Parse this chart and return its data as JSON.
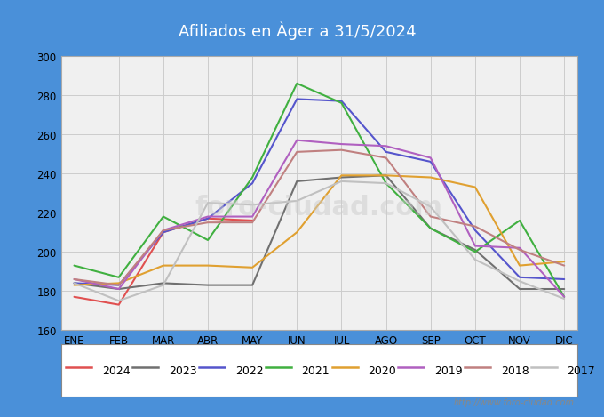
{
  "title": "Afiliados en Àger a 31/5/2024",
  "title_bg_color": "#5b9bd5",
  "title_text_color": "#ffffff",
  "ylim": [
    160,
    300
  ],
  "yticks": [
    160,
    180,
    200,
    220,
    240,
    260,
    280,
    300
  ],
  "months": [
    "ENE",
    "FEB",
    "MAR",
    "ABR",
    "MAY",
    "JUN",
    "JUL",
    "AGO",
    "SEP",
    "OCT",
    "NOV",
    "DIC"
  ],
  "watermark": "http://www.foro-ciudad.com",
  "series": {
    "2024": {
      "color": "#e05050",
      "linewidth": 1.5,
      "data": [
        177,
        173,
        210,
        217,
        216,
        null,
        null,
        null,
        null,
        null,
        null,
        null
      ]
    },
    "2023": {
      "color": "#707070",
      "linewidth": 1.5,
      "data": [
        184,
        181,
        184,
        183,
        183,
        236,
        238,
        239,
        212,
        201,
        181,
        181
      ]
    },
    "2022": {
      "color": "#5555cc",
      "linewidth": 1.5,
      "data": [
        184,
        183,
        210,
        217,
        235,
        278,
        277,
        251,
        246,
        211,
        187,
        186
      ]
    },
    "2021": {
      "color": "#40b040",
      "linewidth": 1.5,
      "data": [
        193,
        187,
        218,
        206,
        238,
        286,
        276,
        235,
        212,
        200,
        216,
        177
      ]
    },
    "2020": {
      "color": "#e0a030",
      "linewidth": 1.5,
      "data": [
        183,
        184,
        193,
        193,
        192,
        210,
        239,
        239,
        238,
        233,
        193,
        195
      ]
    },
    "2019": {
      "color": "#b060c0",
      "linewidth": 1.5,
      "data": [
        186,
        181,
        211,
        218,
        218,
        257,
        255,
        254,
        248,
        203,
        202,
        177
      ]
    },
    "2018": {
      "color": "#c08080",
      "linewidth": 1.5,
      "data": [
        186,
        183,
        211,
        215,
        215,
        251,
        252,
        248,
        218,
        213,
        201,
        193
      ]
    },
    "2017": {
      "color": "#c0c0c0",
      "linewidth": 1.5,
      "data": [
        184,
        175,
        183,
        225,
        224,
        226,
        236,
        235,
        223,
        196,
        185,
        176
      ]
    }
  },
  "legend_order": [
    "2024",
    "2023",
    "2022",
    "2021",
    "2020",
    "2019",
    "2018",
    "2017"
  ],
  "grid_color": "#cccccc",
  "plot_bg_color": "#f0f0f0",
  "border_color": "#aaaaaa",
  "frame_bg": "#4a90d9"
}
